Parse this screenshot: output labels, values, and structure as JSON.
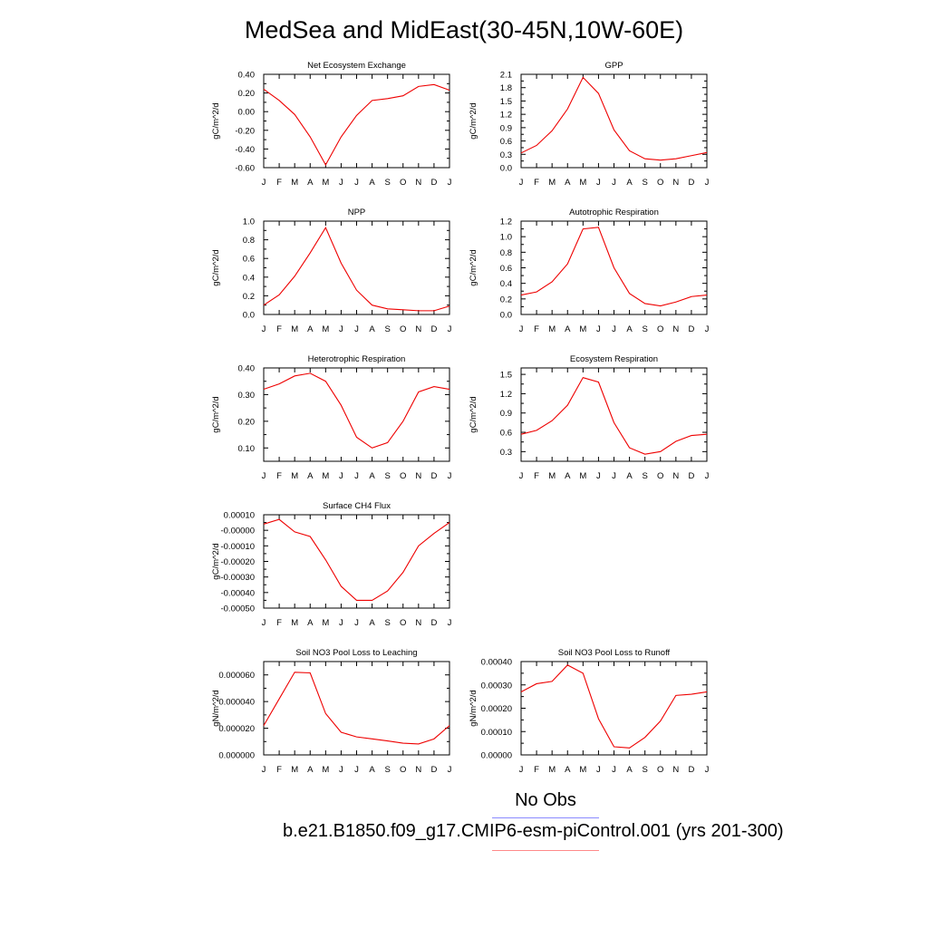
{
  "title": "MedSea and MidEast(30-45N,10W-60E)",
  "line_color": "#ee0000",
  "legend": {
    "obs_label": "No Obs",
    "obs_color": "#8a8aff",
    "model_label": "b.e21.B1850.f09_g17.CMIP6-esm-piControl.001 (yrs 201-300)",
    "model_color": "#ff8a8a"
  },
  "chart_data": [
    {
      "type": "line",
      "title": "Net Ecosystem Exchange",
      "ylabel": "gC/m^2/d",
      "categories": [
        "J",
        "F",
        "M",
        "A",
        "M",
        "J",
        "J",
        "A",
        "S",
        "O",
        "N",
        "D",
        "J"
      ],
      "ylim": [
        -0.6,
        0.4
      ],
      "yticks": [
        "0.40",
        "0.20",
        "0.00",
        "-0.20",
        "-0.40",
        "-0.60"
      ],
      "ytick_values": [
        0.4,
        0.2,
        0.0,
        -0.2,
        -0.4,
        -0.6
      ],
      "values": [
        0.24,
        0.12,
        -0.03,
        -0.27,
        -0.57,
        -0.27,
        -0.04,
        0.12,
        0.14,
        0.17,
        0.27,
        0.29,
        0.23
      ]
    },
    {
      "type": "line",
      "title": "GPP",
      "ylabel": "gC/m^2/d",
      "categories": [
        "J",
        "F",
        "M",
        "A",
        "M",
        "J",
        "J",
        "A",
        "S",
        "O",
        "N",
        "D",
        "J"
      ],
      "ylim": [
        0.0,
        2.1
      ],
      "yticks": [
        "2.1",
        "1.8",
        "1.5",
        "1.2",
        "0.9",
        "0.6",
        "0.3",
        "0.0"
      ],
      "ytick_values": [
        2.1,
        1.8,
        1.5,
        1.2,
        0.9,
        0.6,
        0.3,
        0.0
      ],
      "values": [
        0.33,
        0.5,
        0.83,
        1.32,
        2.03,
        1.67,
        0.85,
        0.38,
        0.2,
        0.17,
        0.2,
        0.27,
        0.34
      ]
    },
    {
      "type": "line",
      "title": "NPP",
      "ylabel": "gC/m^2/d",
      "categories": [
        "J",
        "F",
        "M",
        "A",
        "M",
        "J",
        "J",
        "A",
        "S",
        "O",
        "N",
        "D",
        "J"
      ],
      "ylim": [
        0.0,
        1.0
      ],
      "yticks": [
        "1.0",
        "0.8",
        "0.6",
        "0.4",
        "0.2",
        "0.0"
      ],
      "ytick_values": [
        1.0,
        0.8,
        0.6,
        0.4,
        0.2,
        0.0
      ],
      "values": [
        0.1,
        0.21,
        0.41,
        0.66,
        0.93,
        0.55,
        0.26,
        0.1,
        0.06,
        0.05,
        0.04,
        0.04,
        0.09
      ]
    },
    {
      "type": "line",
      "title": "Autotrophic Respiration",
      "ylabel": "gC/m^2/d",
      "categories": [
        "J",
        "F",
        "M",
        "A",
        "M",
        "J",
        "J",
        "A",
        "S",
        "O",
        "N",
        "D",
        "J"
      ],
      "ylim": [
        0.0,
        1.2
      ],
      "yticks": [
        "1.2",
        "1.0",
        "0.8",
        "0.6",
        "0.4",
        "0.2",
        "0.0"
      ],
      "ytick_values": [
        1.2,
        1.0,
        0.8,
        0.6,
        0.4,
        0.2,
        0.0
      ],
      "values": [
        0.25,
        0.29,
        0.42,
        0.65,
        1.1,
        1.12,
        0.6,
        0.27,
        0.14,
        0.11,
        0.16,
        0.23,
        0.25
      ]
    },
    {
      "type": "line",
      "title": "Heterotrophic Respiration",
      "ylabel": "gC/m^2/d",
      "categories": [
        "J",
        "F",
        "M",
        "A",
        "M",
        "J",
        "J",
        "A",
        "S",
        "O",
        "N",
        "D",
        "J"
      ],
      "ylim": [
        0.05,
        0.4
      ],
      "yticks": [
        "0.40",
        "0.30",
        "0.20",
        "0.10"
      ],
      "ytick_values": [
        0.4,
        0.3,
        0.2,
        0.1
      ],
      "values": [
        0.32,
        0.34,
        0.37,
        0.38,
        0.35,
        0.26,
        0.14,
        0.1,
        0.12,
        0.2,
        0.31,
        0.33,
        0.32
      ]
    },
    {
      "type": "line",
      "title": "Ecosystem Respiration",
      "ylabel": "gC/m^2/d",
      "categories": [
        "J",
        "F",
        "M",
        "A",
        "M",
        "J",
        "J",
        "A",
        "S",
        "O",
        "N",
        "D",
        "J"
      ],
      "ylim": [
        0.15,
        1.6
      ],
      "yticks": [
        "1.5",
        "1.2",
        "0.9",
        "0.6",
        "0.3"
      ],
      "ytick_values": [
        1.5,
        1.2,
        0.9,
        0.6,
        0.3
      ],
      "values": [
        0.57,
        0.63,
        0.78,
        1.02,
        1.45,
        1.38,
        0.75,
        0.36,
        0.26,
        0.3,
        0.46,
        0.55,
        0.57
      ]
    },
    {
      "type": "line",
      "title": "Surface CH4 Flux",
      "ylabel": "gC/m^2/d",
      "categories": [
        "J",
        "F",
        "M",
        "A",
        "M",
        "J",
        "J",
        "A",
        "S",
        "O",
        "N",
        "D",
        "J"
      ],
      "ylim": [
        -0.0005,
        0.0001
      ],
      "yticks": [
        "0.00010",
        "-0.00000",
        "-0.00010",
        "-0.00020",
        "-0.00030",
        "-0.00040",
        "-0.00050"
      ],
      "ytick_values": [
        0.0001,
        0.0,
        -0.0001,
        -0.0002,
        -0.0003,
        -0.0004,
        -0.0005
      ],
      "values": [
        4e-05,
        7e-05,
        -1e-05,
        -4e-05,
        -0.00019,
        -0.00036,
        -0.00045,
        -0.00045,
        -0.00039,
        -0.00027,
        -0.0001,
        -2e-05,
        5e-05
      ]
    },
    {
      "type": "line",
      "title": "Soil NO3 Pool Loss to Leaching",
      "ylabel": "gN/m^2/d",
      "categories": [
        "J",
        "F",
        "M",
        "A",
        "M",
        "J",
        "J",
        "A",
        "S",
        "O",
        "N",
        "D",
        "J"
      ],
      "ylim": [
        0.0,
        7e-05
      ],
      "yticks": [
        "0.000060",
        "0.000040",
        "0.000020",
        "0.000000"
      ],
      "ytick_values": [
        6e-05,
        4e-05,
        2e-05,
        0.0
      ],
      "values": [
        2.2e-05,
        4.2e-05,
        6.2e-05,
        6.15e-05,
        3.1e-05,
        1.7e-05,
        1.35e-05,
        1.2e-05,
        1.05e-05,
        8.8e-06,
        8.2e-06,
        1.2e-05,
        2.2e-05
      ]
    },
    {
      "type": "line",
      "title": "Soil NO3 Pool Loss to Runoff",
      "ylabel": "gN/m^2/d",
      "categories": [
        "J",
        "F",
        "M",
        "A",
        "M",
        "J",
        "J",
        "A",
        "S",
        "O",
        "N",
        "D",
        "J"
      ],
      "ylim": [
        0.0,
        0.0004
      ],
      "yticks": [
        "0.00040",
        "0.00030",
        "0.00020",
        "0.00010",
        "0.00000"
      ],
      "ytick_values": [
        0.0004,
        0.0003,
        0.0002,
        0.0001,
        0.0
      ],
      "values": [
        0.00027,
        0.000305,
        0.000315,
        0.000385,
        0.00035,
        0.000155,
        3.5e-05,
        3e-05,
        7.5e-05,
        0.000145,
        0.000255,
        0.00026,
        0.00027
      ]
    }
  ]
}
